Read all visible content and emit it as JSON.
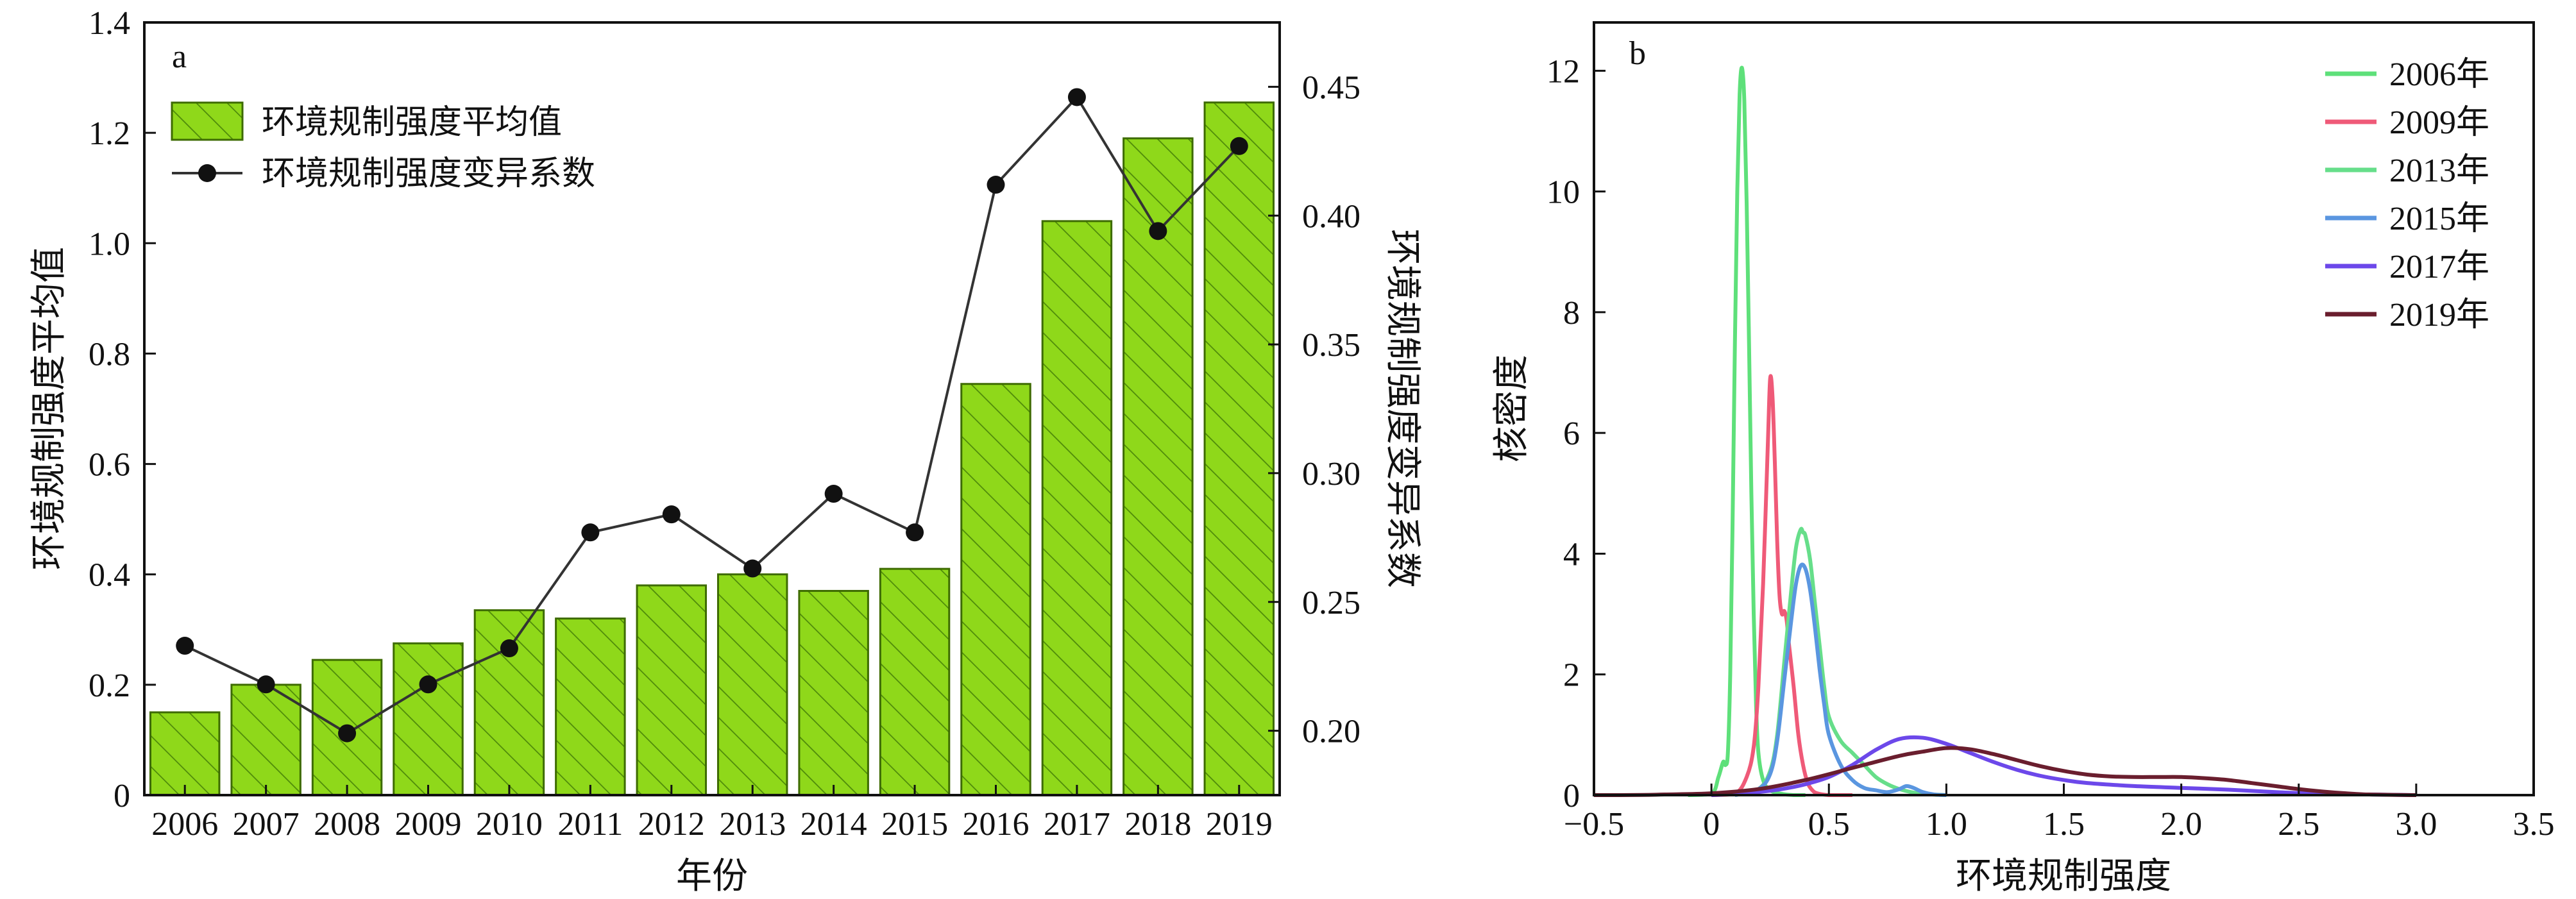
{
  "colors": {
    "bar_fill": "#8fd81a",
    "bar_stroke": "#3d6b00",
    "bar_hatch": "#4e8a0a",
    "line": "#333333",
    "marker": "#111111"
  },
  "chart_data": [
    {
      "type": "bar",
      "panel_label": "a",
      "categories": [
        "2006",
        "2007",
        "2008",
        "2009",
        "2010",
        "2011",
        "2012",
        "2013",
        "2014",
        "2015",
        "2016",
        "2017",
        "2018",
        "2019"
      ],
      "xlabel": "年份",
      "ylabel": "环境规制强度平均值",
      "ylabel_right": "环境规制强度变异系数",
      "ylim": [
        0,
        1.4
      ],
      "yticks": [
        "0",
        "0.2",
        "0.4",
        "0.6",
        "0.8",
        "1.0",
        "1.2",
        "1.4"
      ],
      "ylim_right": [
        0.175,
        0.475
      ],
      "yticks_right": [
        "0.20",
        "0.25",
        "0.30",
        "0.35",
        "0.40",
        "0.45"
      ],
      "series": [
        {
          "name": "环境规制强度平均值",
          "kind": "bar",
          "axis": "left",
          "values": [
            0.15,
            0.2,
            0.245,
            0.275,
            0.335,
            0.32,
            0.38,
            0.4,
            0.37,
            0.41,
            0.745,
            1.04,
            1.19,
            1.255
          ]
        },
        {
          "name": "环境规制强度变异系数",
          "kind": "line",
          "axis": "right",
          "values": [
            0.233,
            0.218,
            0.199,
            0.218,
            0.232,
            0.277,
            0.284,
            0.263,
            0.292,
            0.277,
            0.412,
            0.446,
            0.394,
            0.427
          ]
        }
      ],
      "legend_position": "top-left",
      "grid": false
    },
    {
      "type": "line",
      "panel_label": "b",
      "xlabel": "环境规制强度",
      "ylabel": "核密度",
      "xlim": [
        -0.5,
        3.5
      ],
      "xticks": [
        "−0.5",
        "0",
        "0.5",
        "1.0",
        "1.5",
        "2.0",
        "2.5",
        "3.0",
        "3.5"
      ],
      "ylim": [
        0,
        12.8
      ],
      "yticks": [
        "0",
        "2",
        "4",
        "6",
        "8",
        "10",
        "12"
      ],
      "legend_position": "top-right",
      "grid": false,
      "series": [
        {
          "name": "2006年",
          "color": "#5ee07a",
          "x": [
            -0.1,
            0.0,
            0.03,
            0.05,
            0.06,
            0.07,
            0.08,
            0.09,
            0.1,
            0.11,
            0.12,
            0.13,
            0.14,
            0.15,
            0.16,
            0.17,
            0.18,
            0.19,
            0.2,
            0.22,
            0.25,
            0.3,
            0.35,
            0.4
          ],
          "y": [
            0,
            0.02,
            0.3,
            0.55,
            0.5,
            0.7,
            2.0,
            4.5,
            7.5,
            10.0,
            11.6,
            12.05,
            11.5,
            9.8,
            7.5,
            5.0,
            3.0,
            1.5,
            0.7,
            0.25,
            0.08,
            0.02,
            0,
            0
          ]
        },
        {
          "name": "2009年",
          "color": "#ef5a78",
          "x": [
            0.0,
            0.1,
            0.15,
            0.18,
            0.2,
            0.22,
            0.24,
            0.25,
            0.26,
            0.27,
            0.28,
            0.29,
            0.3,
            0.31,
            0.32,
            0.33,
            0.35,
            0.37,
            0.39,
            0.41,
            0.43,
            0.45,
            0.5,
            0.6
          ],
          "y": [
            0,
            0.02,
            0.3,
            0.8,
            1.8,
            3.5,
            5.8,
            6.9,
            6.6,
            5.5,
            4.2,
            3.3,
            3.0,
            3.05,
            2.9,
            2.5,
            1.8,
            1.0,
            0.5,
            0.2,
            0.08,
            0.03,
            0,
            0
          ]
        },
        {
          "name": "2013年",
          "color": "#66de8a",
          "x": [
            0.1,
            0.2,
            0.25,
            0.28,
            0.31,
            0.34,
            0.36,
            0.38,
            0.39,
            0.4,
            0.42,
            0.44,
            0.46,
            0.48,
            0.5,
            0.55,
            0.6,
            0.65,
            0.7,
            0.75,
            0.8,
            0.85,
            0.9,
            1.0
          ],
          "y": [
            0,
            0.1,
            0.4,
            1.0,
            2.2,
            3.4,
            4.1,
            4.4,
            4.35,
            4.3,
            3.9,
            3.2,
            2.5,
            1.8,
            1.3,
            0.9,
            0.7,
            0.5,
            0.3,
            0.18,
            0.1,
            0.05,
            0.02,
            0
          ]
        },
        {
          "name": "2015年",
          "color": "#5a96e0",
          "x": [
            0.1,
            0.2,
            0.25,
            0.28,
            0.31,
            0.34,
            0.36,
            0.38,
            0.4,
            0.42,
            0.44,
            0.46,
            0.48,
            0.5,
            0.55,
            0.6,
            0.65,
            0.7,
            0.75,
            0.8,
            0.83,
            0.86,
            0.9,
            0.95,
            1.0
          ],
          "y": [
            0,
            0.1,
            0.35,
            0.9,
            1.9,
            2.9,
            3.5,
            3.8,
            3.75,
            3.4,
            2.8,
            2.1,
            1.5,
            1.0,
            0.5,
            0.25,
            0.12,
            0.08,
            0.05,
            0.1,
            0.15,
            0.12,
            0.05,
            0.01,
            0
          ]
        },
        {
          "name": "2017年",
          "color": "#6c48ea",
          "x": [
            0.0,
            0.1,
            0.2,
            0.3,
            0.4,
            0.5,
            0.6,
            0.7,
            0.8,
            0.9,
            1.0,
            1.1,
            1.2,
            1.3,
            1.4,
            1.5,
            1.6,
            1.8,
            2.0,
            2.2,
            2.4,
            2.6,
            2.8,
            3.0
          ],
          "y": [
            0,
            0.02,
            0.05,
            0.1,
            0.18,
            0.3,
            0.5,
            0.75,
            0.93,
            0.95,
            0.85,
            0.7,
            0.55,
            0.42,
            0.32,
            0.25,
            0.2,
            0.15,
            0.12,
            0.09,
            0.05,
            0.02,
            0.01,
            0
          ]
        },
        {
          "name": "2019年",
          "color": "#6a1e2e",
          "x": [
            -0.5,
            -0.3,
            -0.2,
            0.0,
            0.2,
            0.4,
            0.6,
            0.8,
            0.9,
            1.0,
            1.1,
            1.2,
            1.3,
            1.4,
            1.5,
            1.6,
            1.7,
            1.8,
            1.9,
            2.0,
            2.1,
            2.2,
            2.3,
            2.4,
            2.5,
            2.6,
            2.7,
            2.8,
            3.0
          ],
          "y": [
            0,
            0.002,
            0.01,
            0.03,
            0.1,
            0.25,
            0.45,
            0.65,
            0.72,
            0.78,
            0.76,
            0.68,
            0.58,
            0.48,
            0.4,
            0.34,
            0.31,
            0.3,
            0.3,
            0.3,
            0.28,
            0.25,
            0.2,
            0.15,
            0.1,
            0.06,
            0.03,
            0.01,
            0
          ]
        }
      ]
    }
  ]
}
